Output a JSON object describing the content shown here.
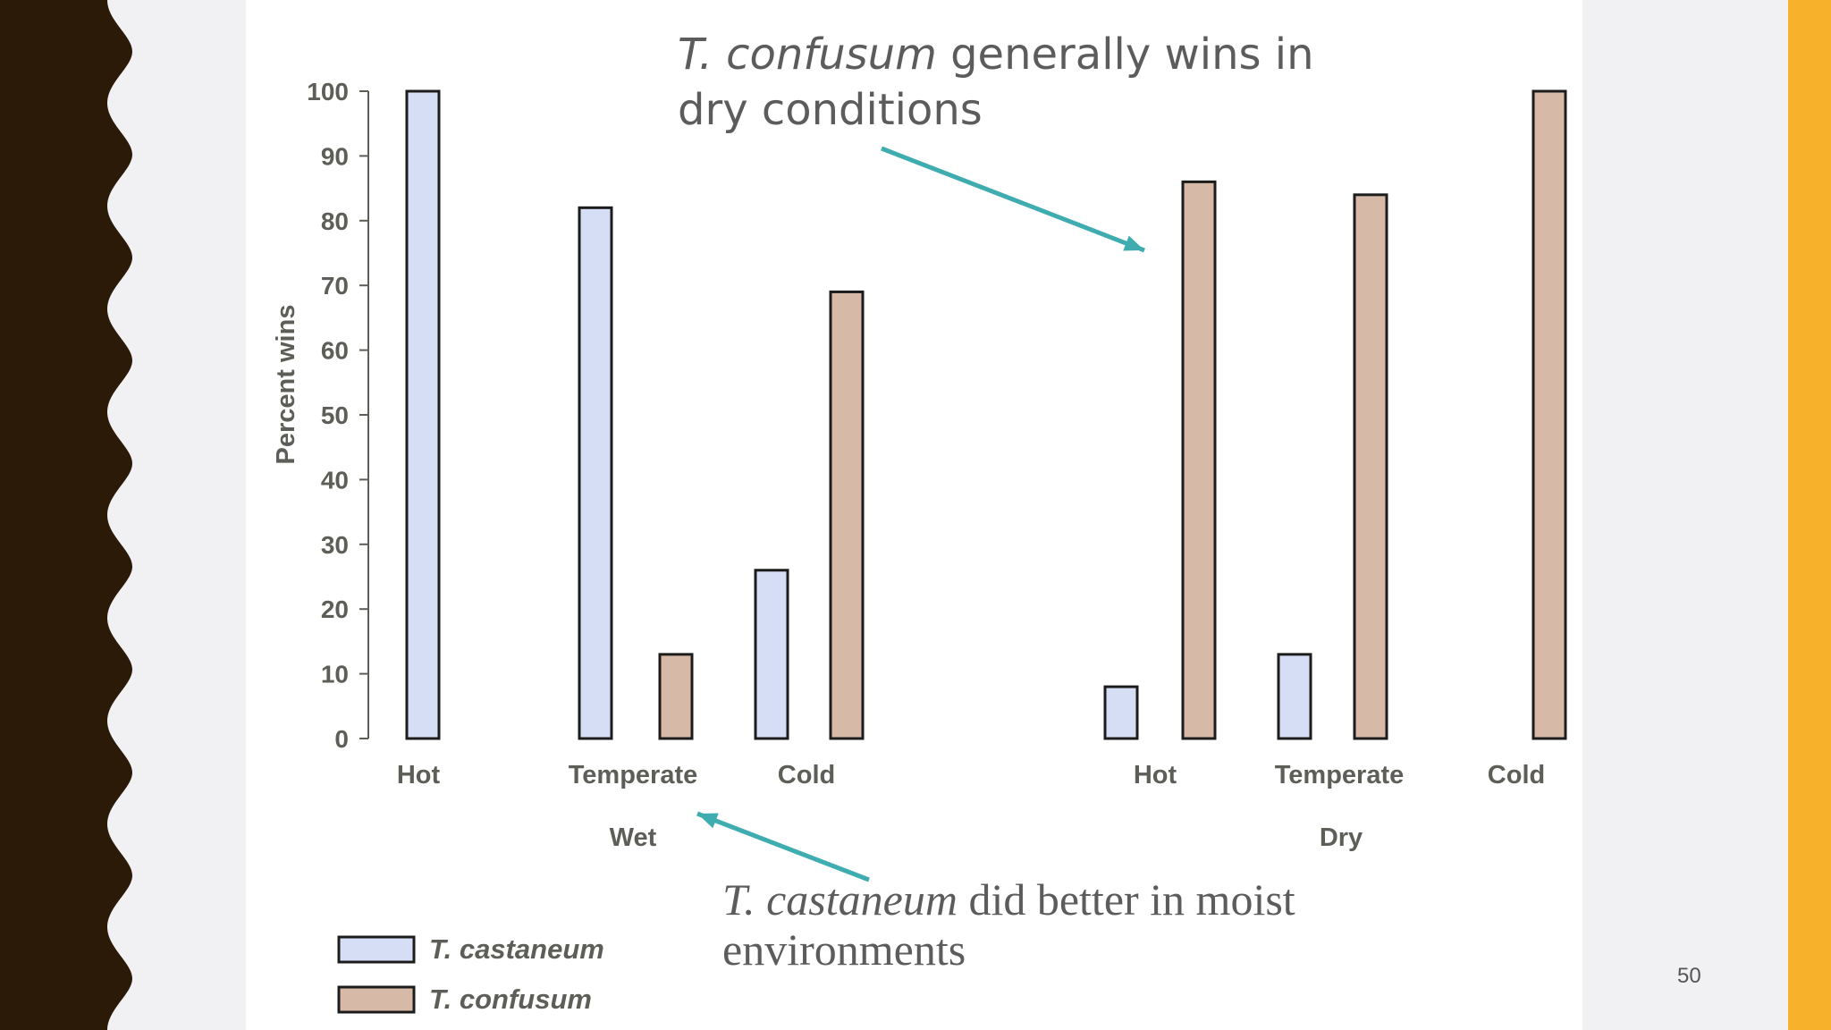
{
  "colors": {
    "castaneum": "#d6def5",
    "confusum": "#d7b9a8",
    "arrow": "#3fadb0",
    "axis_text": "#5e5e58",
    "accent": "#f7b12a",
    "wave": "#2b1a08"
  },
  "slide": {
    "page_number": "50"
  },
  "annotations": {
    "top_species": "T. confusum",
    "top_text": " generally wins in dry conditions",
    "bottom_species": "T. castaneum",
    "bottom_text": " did better in moist environments"
  },
  "chart_data": {
    "type": "bar",
    "ylabel": "Percent wins",
    "ylim": [
      0,
      100
    ],
    "yticks": [
      0,
      10,
      20,
      30,
      40,
      50,
      60,
      70,
      80,
      90,
      100
    ],
    "groups": [
      {
        "name": "Wet",
        "categories": [
          "Hot",
          "Temperate",
          "Cold"
        ]
      },
      {
        "name": "Dry",
        "categories": [
          "Hot",
          "Temperate",
          "Cold"
        ]
      }
    ],
    "series": [
      {
        "name": "T. castaneum",
        "values": [
          100,
          82,
          26,
          8,
          13,
          0
        ]
      },
      {
        "name": "T. confusum",
        "values": [
          0,
          13,
          69,
          86,
          84,
          100
        ]
      }
    ],
    "legend": "bottom-left"
  }
}
